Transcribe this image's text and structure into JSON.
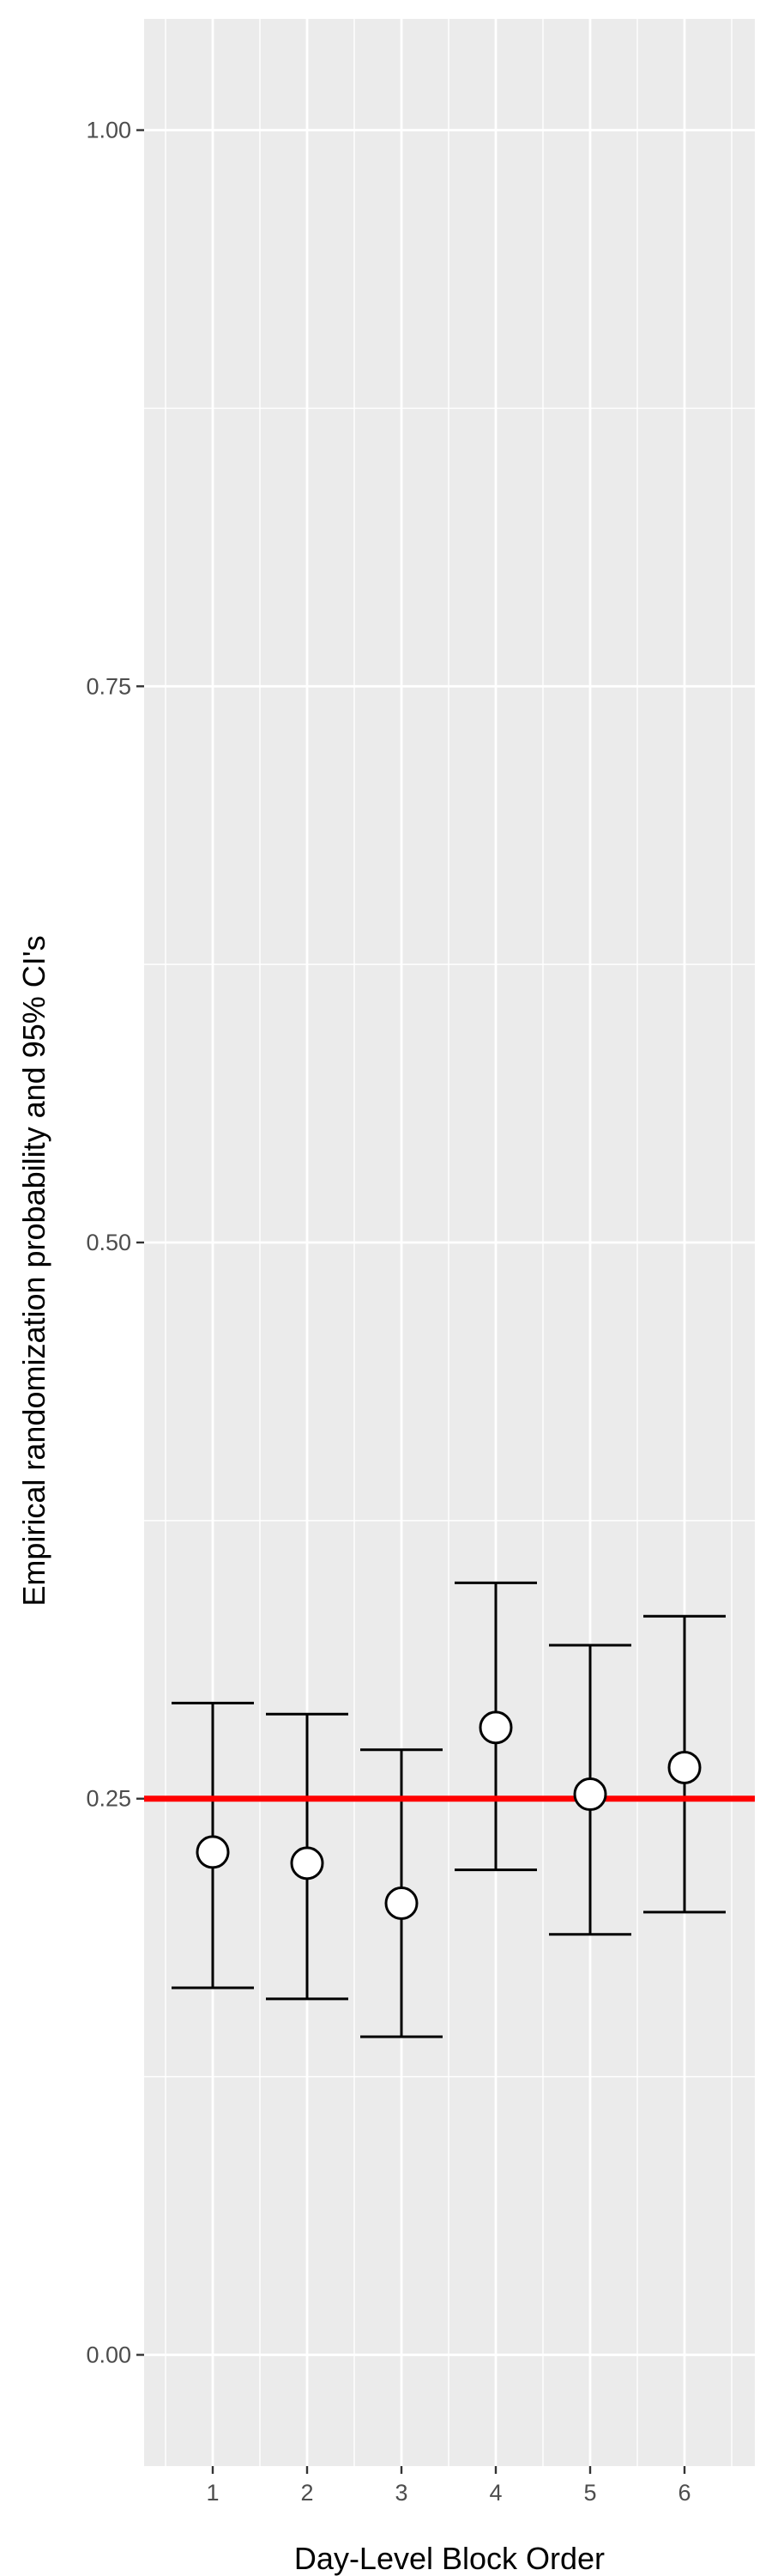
{
  "chart_data": {
    "type": "scatter",
    "title": "",
    "xlabel": "Day-Level Block Order",
    "ylabel": "Empirical randomization probability and 95% CI's",
    "categories": [
      "1",
      "2",
      "3",
      "4",
      "5",
      "6"
    ],
    "points": [
      {
        "x": "1",
        "y": 0.226,
        "lower": 0.165,
        "upper": 0.293
      },
      {
        "x": "2",
        "y": 0.221,
        "lower": 0.16,
        "upper": 0.288
      },
      {
        "x": "3",
        "y": 0.203,
        "lower": 0.143,
        "upper": 0.272
      },
      {
        "x": "4",
        "y": 0.282,
        "lower": 0.218,
        "upper": 0.347
      },
      {
        "x": "5",
        "y": 0.252,
        "lower": 0.189,
        "upper": 0.319
      },
      {
        "x": "6",
        "y": 0.264,
        "lower": 0.199,
        "upper": 0.332
      }
    ],
    "reference_line": {
      "y": 0.25,
      "color": "#ff0000"
    },
    "ylim": [
      -0.05,
      1.05
    ],
    "yticks": [
      {
        "value": 0.0,
        "label": "0.00"
      },
      {
        "value": 0.25,
        "label": "0.25"
      },
      {
        "value": 0.5,
        "label": "0.50"
      },
      {
        "value": 0.75,
        "label": "0.75"
      },
      {
        "value": 1.0,
        "label": "1.00"
      }
    ],
    "grid": true,
    "legend": "none",
    "colors": {
      "panel": "#ebebeb",
      "grid": "#ffffff",
      "errorbar": "#000000",
      "point_fill": "#ffffff",
      "point_stroke": "#000000"
    }
  }
}
